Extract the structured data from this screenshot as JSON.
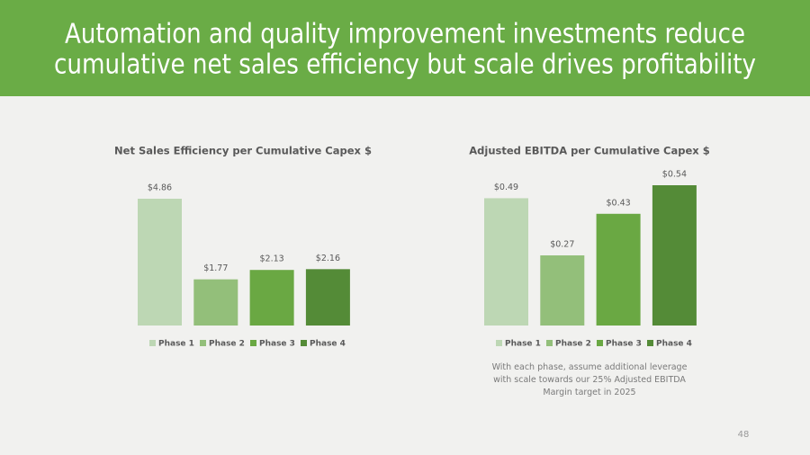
{
  "title_lines": [
    "Automation and quality improvement investments reduce",
    "cumulative net sales efficiency but scale drives profitability"
  ],
  "chart_data": [
    {
      "type": "bar",
      "title": "Net Sales Efficiency per Cumulative Capex $",
      "series": [
        {
          "name": "Phase 1",
          "color": "#bdd7b4",
          "values": [
            4.86
          ],
          "value_labels": [
            "$4.86"
          ]
        },
        {
          "name": "Phase 2",
          "color": "#93bf7a",
          "values": [
            1.77
          ],
          "value_labels": [
            "$1.77"
          ]
        },
        {
          "name": "Phase 3",
          "color": "#6aa843",
          "values": [
            2.13
          ],
          "value_labels": [
            "$2.13"
          ]
        },
        {
          "name": "Phase 4",
          "color": "#548b37",
          "values": [
            2.16
          ],
          "value_labels": [
            "$2.16"
          ]
        }
      ]
    },
    {
      "type": "bar",
      "title": "Adjusted EBITDA per Cumulative Capex $",
      "series": [
        {
          "name": "Phase 1",
          "color": "#bdd7b4",
          "values": [
            0.49
          ],
          "value_labels": [
            "$0.49"
          ]
        },
        {
          "name": "Phase 2",
          "color": "#93bf7a",
          "values": [
            0.27
          ],
          "value_labels": [
            "$0.27"
          ]
        },
        {
          "name": "Phase 3",
          "color": "#6aa843",
          "values": [
            0.43
          ],
          "value_labels": [
            "$0.43"
          ]
        },
        {
          "name": "Phase 4",
          "color": "#548b37",
          "values": [
            0.54
          ],
          "value_labels": [
            "$0.54"
          ]
        }
      ]
    }
  ],
  "note": "With each phase, assume additional leverage with scale towards our 25% Adjusted EBITDA Margin target in 2025",
  "page_number": "48"
}
